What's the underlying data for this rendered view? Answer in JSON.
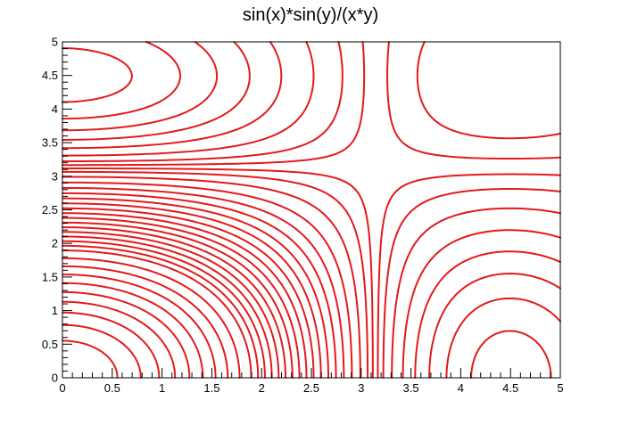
{
  "chart_data": {
    "type": "contour",
    "title": "sin(x)*sin(y)/(x*y)",
    "function": "sin(x)*sin(y)/(x*y)",
    "xlim": [
      0,
      5
    ],
    "ylim": [
      0,
      5
    ],
    "x_ticks": [
      "0",
      "0.5",
      "1",
      "1.5",
      "2",
      "2.5",
      "3",
      "3.5",
      "4",
      "4.5",
      "5"
    ],
    "y_ticks": [
      "0",
      "0.5",
      "1",
      "1.5",
      "2",
      "2.5",
      "3",
      "3.5",
      "4",
      "4.5",
      "5"
    ],
    "x_tick_values": [
      0,
      0.5,
      1,
      1.5,
      2,
      2.5,
      3,
      3.5,
      4,
      4.5,
      5
    ],
    "y_tick_values": [
      0,
      0.5,
      1,
      1.5,
      2,
      2.5,
      3,
      3.5,
      4,
      4.5,
      5
    ],
    "levels": [
      -0.2,
      -0.17,
      -0.14,
      -0.11,
      -0.08,
      -0.05,
      -0.025,
      -0.008,
      0.008,
      0.025,
      0.05,
      0.08,
      0.11,
      0.14,
      0.17,
      0.2,
      0.23,
      0.26,
      0.29,
      0.32,
      0.35,
      0.38,
      0.41,
      0.44,
      0.47,
      0.5,
      0.55,
      0.6,
      0.65,
      0.7,
      0.75,
      0.8,
      0.85,
      0.9,
      0.95
    ],
    "line_color": "#e31a1c",
    "grid": false,
    "legend": "none"
  }
}
